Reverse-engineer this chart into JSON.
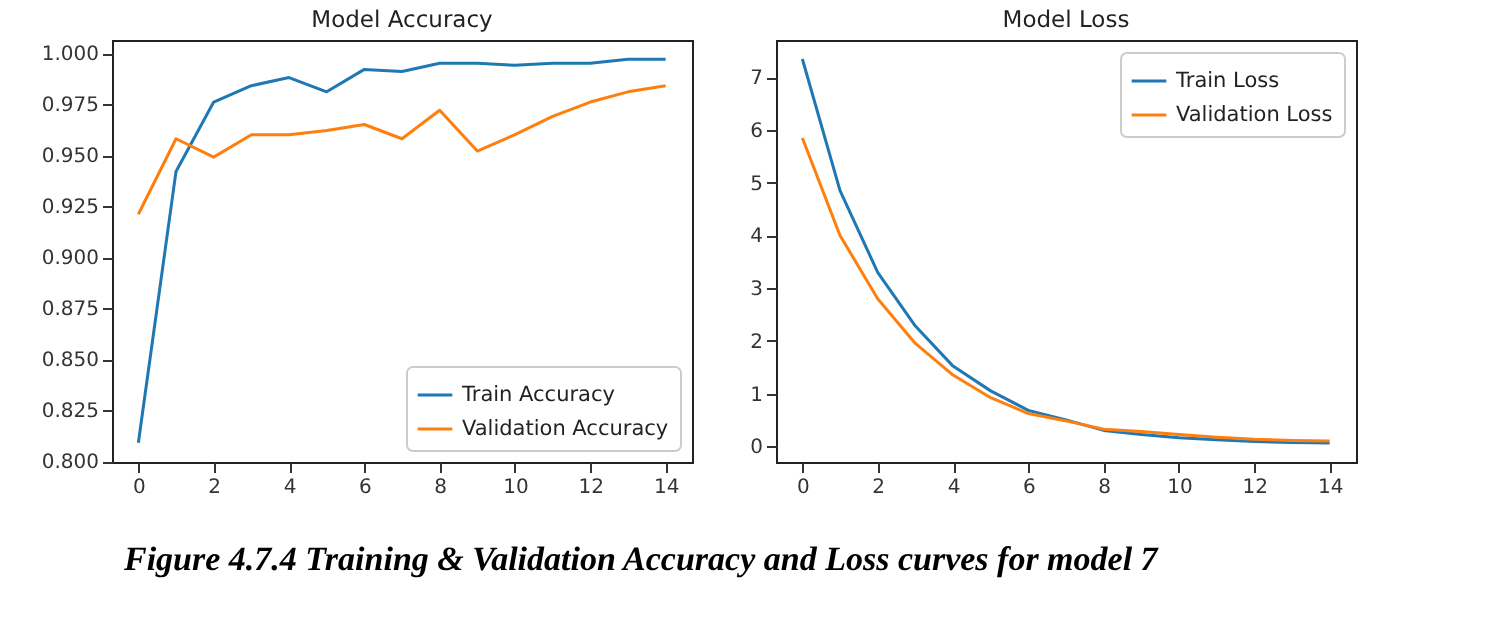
{
  "chart_data": [
    {
      "type": "line",
      "title": "Model Accuracy",
      "x": [
        0,
        1,
        2,
        3,
        4,
        5,
        6,
        7,
        8,
        9,
        10,
        11,
        12,
        13,
        14
      ],
      "series": [
        {
          "name": "Train Accuracy",
          "color": "#1f77b4",
          "values": [
            0.809,
            0.942,
            0.976,
            0.984,
            0.988,
            0.981,
            0.992,
            0.991,
            0.995,
            0.995,
            0.994,
            0.995,
            0.995,
            0.997,
            0.997
          ]
        },
        {
          "name": "Validation Accuracy",
          "color": "#ff7f0e",
          "values": [
            0.921,
            0.958,
            0.949,
            0.96,
            0.96,
            0.962,
            0.965,
            0.958,
            0.972,
            0.952,
            0.96,
            0.969,
            0.976,
            0.981,
            0.984
          ]
        }
      ],
      "xlim": [
        -0.7,
        14.7
      ],
      "xticks": [
        0,
        2,
        4,
        6,
        8,
        10,
        12,
        14
      ],
      "ylim": [
        0.7996,
        1.0064
      ],
      "yticks": [
        {
          "value": 0.8,
          "label": "0.800"
        },
        {
          "value": 0.825,
          "label": "0.825"
        },
        {
          "value": 0.85,
          "label": "0.850"
        },
        {
          "value": 0.875,
          "label": "0.875"
        },
        {
          "value": 0.9,
          "label": "0.900"
        },
        {
          "value": 0.925,
          "label": "0.925"
        },
        {
          "value": 0.95,
          "label": "0.950"
        },
        {
          "value": 0.975,
          "label": "0.975"
        },
        {
          "value": 1.0,
          "label": "1.000"
        }
      ],
      "legend": "bottom right",
      "grid": false
    },
    {
      "type": "line",
      "title": "Model Loss",
      "x": [
        0,
        1,
        2,
        3,
        4,
        5,
        6,
        7,
        8,
        9,
        10,
        11,
        12,
        13,
        14
      ],
      "series": [
        {
          "name": "Train Loss",
          "color": "#1f77b4",
          "values": [
            7.35,
            4.85,
            3.3,
            2.28,
            1.52,
            1.05,
            0.68,
            0.5,
            0.3,
            0.22,
            0.16,
            0.12,
            0.09,
            0.07,
            0.06
          ]
        },
        {
          "name": "Validation Loss",
          "color": "#ff7f0e",
          "values": [
            5.85,
            4.0,
            2.8,
            1.95,
            1.35,
            0.92,
            0.62,
            0.48,
            0.32,
            0.28,
            0.22,
            0.17,
            0.13,
            0.11,
            0.1
          ]
        }
      ],
      "xlim": [
        -0.7,
        14.7
      ],
      "xticks": [
        0,
        2,
        4,
        6,
        8,
        10,
        12,
        14
      ],
      "ylim": [
        -0.3,
        7.71
      ],
      "yticks": [
        0,
        1,
        2,
        3,
        4,
        5,
        6,
        7
      ],
      "legend": "top right",
      "grid": false,
      "annotations": [
        "Figure 4.7.4 Training & Validation Accuracy and Loss curves for model 7"
      ]
    }
  ]
}
